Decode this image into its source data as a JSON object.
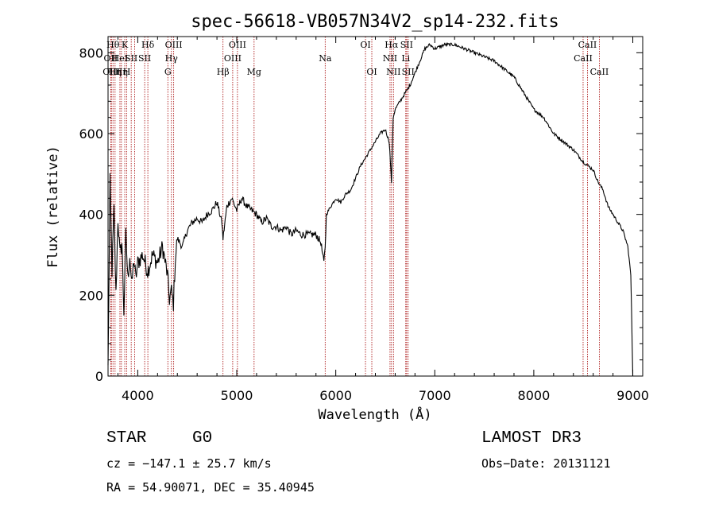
{
  "chart_data": {
    "type": "line",
    "title": "spec-56618-VB057N34V2_sp14-232.fits",
    "xlabel": "Wavelength (Å)",
    "ylabel": "Flux (relative)",
    "xlim": [
      3700,
      9100
    ],
    "ylim": [
      0,
      840
    ],
    "xticks": [
      4000,
      5000,
      6000,
      7000,
      8000,
      9000
    ],
    "yticks": [
      0,
      200,
      400,
      600,
      800
    ],
    "series": [
      {
        "name": "flux",
        "x": [
          3700,
          3720,
          3740,
          3760,
          3780,
          3800,
          3820,
          3840,
          3860,
          3880,
          3900,
          3920,
          3940,
          3960,
          3980,
          4000,
          4050,
          4100,
          4150,
          4200,
          4250,
          4300,
          4320,
          4340,
          4360,
          4380,
          4400,
          4450,
          4500,
          4550,
          4600,
          4650,
          4700,
          4750,
          4800,
          4850,
          4861,
          4900,
          4950,
          5000,
          5050,
          5100,
          5150,
          5200,
          5250,
          5300,
          5350,
          5400,
          5450,
          5500,
          5550,
          5600,
          5650,
          5700,
          5750,
          5800,
          5850,
          5880,
          5893,
          5905,
          5950,
          6000,
          6050,
          6100,
          6150,
          6200,
          6250,
          6300,
          6350,
          6400,
          6450,
          6500,
          6540,
          6563,
          6580,
          6600,
          6650,
          6700,
          6750,
          6800,
          6850,
          6900,
          6950,
          7000,
          7100,
          7200,
          7300,
          7400,
          7500,
          7600,
          7700,
          7800,
          7900,
          8000,
          8100,
          8200,
          8300,
          8400,
          8500,
          8550,
          8600,
          8650,
          8700,
          8750,
          8800,
          8850,
          8900,
          8950,
          8980,
          9000
        ],
        "values": [
          20,
          480,
          260,
          410,
          200,
          390,
          300,
          330,
          160,
          350,
          240,
          300,
          220,
          290,
          240,
          280,
          300,
          260,
          300,
          280,
          320,
          250,
          190,
          210,
          180,
          290,
          340,
          320,
          360,
          380,
          390,
          380,
          400,
          410,
          430,
          380,
          340,
          420,
          440,
          410,
          440,
          420,
          410,
          400,
          380,
          390,
          370,
          370,
          360,
          370,
          350,
          360,
          350,
          350,
          350,
          350,
          330,
          280,
          320,
          400,
          420,
          440,
          430,
          450,
          460,
          490,
          520,
          540,
          560,
          580,
          600,
          610,
          580,
          480,
          640,
          660,
          680,
          700,
          720,
          750,
          780,
          810,
          820,
          810,
          820,
          820,
          810,
          800,
          790,
          780,
          760,
          740,
          700,
          660,
          640,
          600,
          580,
          560,
          530,
          520,
          510,
          480,
          460,
          420,
          400,
          380,
          360,
          320,
          250,
          0
        ]
      }
    ],
    "lines": [
      {
        "wl": 3727,
        "labels": [
          "OII"
        ],
        "row": 1
      },
      {
        "wl": 3734,
        "labels": [
          "OIII"
        ],
        "row": 2
      },
      {
        "wl": 3750,
        "labels": [
          "Hθ"
        ],
        "row": 0
      },
      {
        "wl": 3771,
        "labels": [
          "Hη"
        ],
        "row": 2
      },
      {
        "wl": 3820,
        "labels": [
          "HeI"
        ],
        "row": 1
      },
      {
        "wl": 3835,
        "labels": [
          "Hη"
        ],
        "row": 2
      },
      {
        "wl": 3869,
        "labels": [
          "K"
        ],
        "row": 0
      },
      {
        "wl": 3889,
        "labels": [
          "H"
        ],
        "row": 2
      },
      {
        "wl": 3934,
        "labels": [
          "SII"
        ],
        "row": 1
      },
      {
        "wl": 3968,
        "labels": [],
        "row": 0
      },
      {
        "wl": 4070,
        "labels": [
          "SII"
        ],
        "row": 1
      },
      {
        "wl": 4102,
        "labels": [
          "Hδ"
        ],
        "row": 0
      },
      {
        "wl": 4304,
        "labels": [
          "G"
        ],
        "row": 2
      },
      {
        "wl": 4340,
        "labels": [
          "Hγ"
        ],
        "row": 1
      },
      {
        "wl": 4363,
        "labels": [
          "OIII"
        ],
        "row": 0
      },
      {
        "wl": 4861,
        "labels": [
          "Hβ"
        ],
        "row": 2
      },
      {
        "wl": 4959,
        "labels": [
          "OIII"
        ],
        "row": 1
      },
      {
        "wl": 5007,
        "labels": [
          "OIII"
        ],
        "row": 0
      },
      {
        "wl": 5175,
        "labels": [
          "Mg"
        ],
        "row": 2
      },
      {
        "wl": 5893,
        "labels": [
          "Na"
        ],
        "row": 1
      },
      {
        "wl": 6300,
        "labels": [
          "OI"
        ],
        "row": 0
      },
      {
        "wl": 6364,
        "labels": [
          "OI"
        ],
        "row": 2
      },
      {
        "wl": 6548,
        "labels": [
          "NII"
        ],
        "row": 1
      },
      {
        "wl": 6563,
        "labels": [
          "Hα"
        ],
        "row": 0
      },
      {
        "wl": 6583,
        "labels": [
          "NII"
        ],
        "row": 2
      },
      {
        "wl": 6707,
        "labels": [
          "Li"
        ],
        "row": 1
      },
      {
        "wl": 6716,
        "labels": [
          "SII"
        ],
        "row": 0
      },
      {
        "wl": 6731,
        "labels": [
          "SII"
        ],
        "row": 2
      },
      {
        "wl": 8498,
        "labels": [
          "CaII"
        ],
        "row": 1
      },
      {
        "wl": 8542,
        "labels": [
          "CaII"
        ],
        "row": 0
      },
      {
        "wl": 8662,
        "labels": [
          "CaII"
        ],
        "row": 2
      }
    ]
  },
  "info": {
    "class": "STAR",
    "subclass": "G0",
    "survey": "LAMOST DR3",
    "cz": "cz = −147.1 ± 25.7 km/s",
    "obs_date": "Obs−Date: 20131121",
    "coords": "RA =  54.90071, DEC =  35.40945"
  }
}
